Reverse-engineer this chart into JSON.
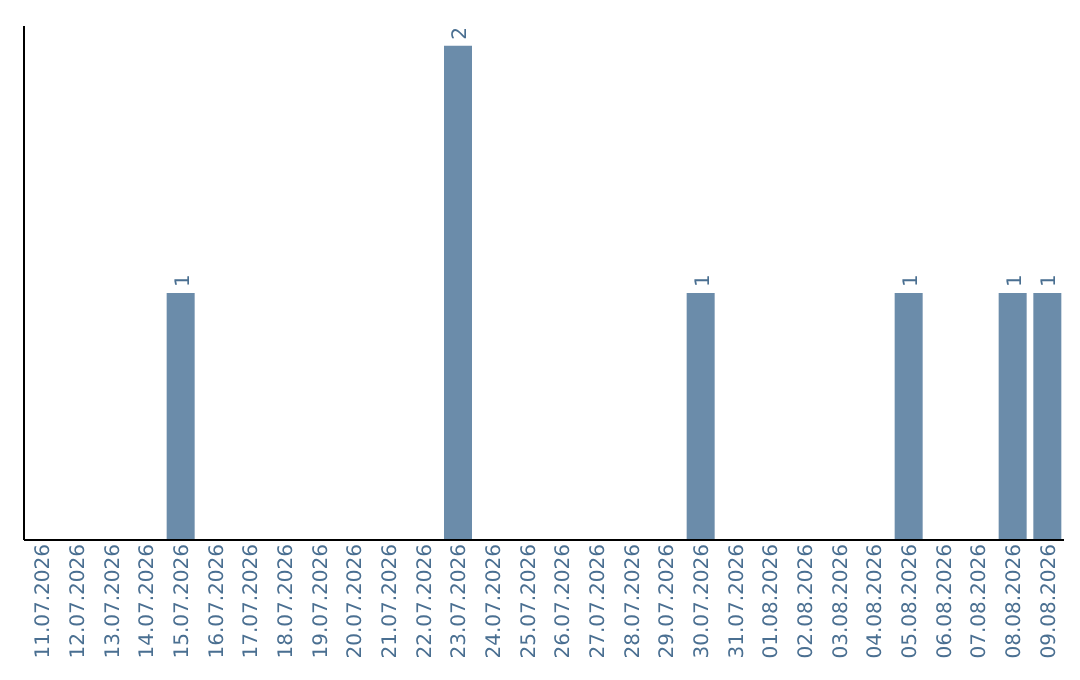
{
  "chart_data": {
    "type": "bar",
    "categories": [
      "11.07.2026",
      "12.07.2026",
      "13.07.2026",
      "14.07.2026",
      "15.07.2026",
      "16.07.2026",
      "17.07.2026",
      "18.07.2026",
      "19.07.2026",
      "20.07.2026",
      "21.07.2026",
      "22.07.2026",
      "23.07.2026",
      "24.07.2026",
      "25.07.2026",
      "26.07.2026",
      "27.07.2026",
      "28.07.2026",
      "29.07.2026",
      "30.07.2026",
      "31.07.2026",
      "01.08.2026",
      "02.08.2026",
      "03.08.2026",
      "04.08.2026",
      "05.08.2026",
      "06.08.2026",
      "07.08.2026",
      "08.08.2026",
      "09.08.2026"
    ],
    "values": [
      0,
      0,
      0,
      0,
      1,
      0,
      0,
      0,
      0,
      0,
      0,
      0,
      2,
      0,
      0,
      0,
      0,
      0,
      0,
      1,
      0,
      0,
      0,
      0,
      0,
      1,
      0,
      0,
      1,
      1
    ],
    "value_labels": [
      null,
      null,
      null,
      null,
      "1",
      null,
      null,
      null,
      null,
      null,
      null,
      null,
      "2",
      null,
      null,
      null,
      null,
      null,
      null,
      "1",
      null,
      null,
      null,
      null,
      null,
      "1",
      null,
      null,
      "1",
      "1"
    ],
    "color": "#6b8caa",
    "relative": false,
    "grid": false,
    "legend": false
  }
}
